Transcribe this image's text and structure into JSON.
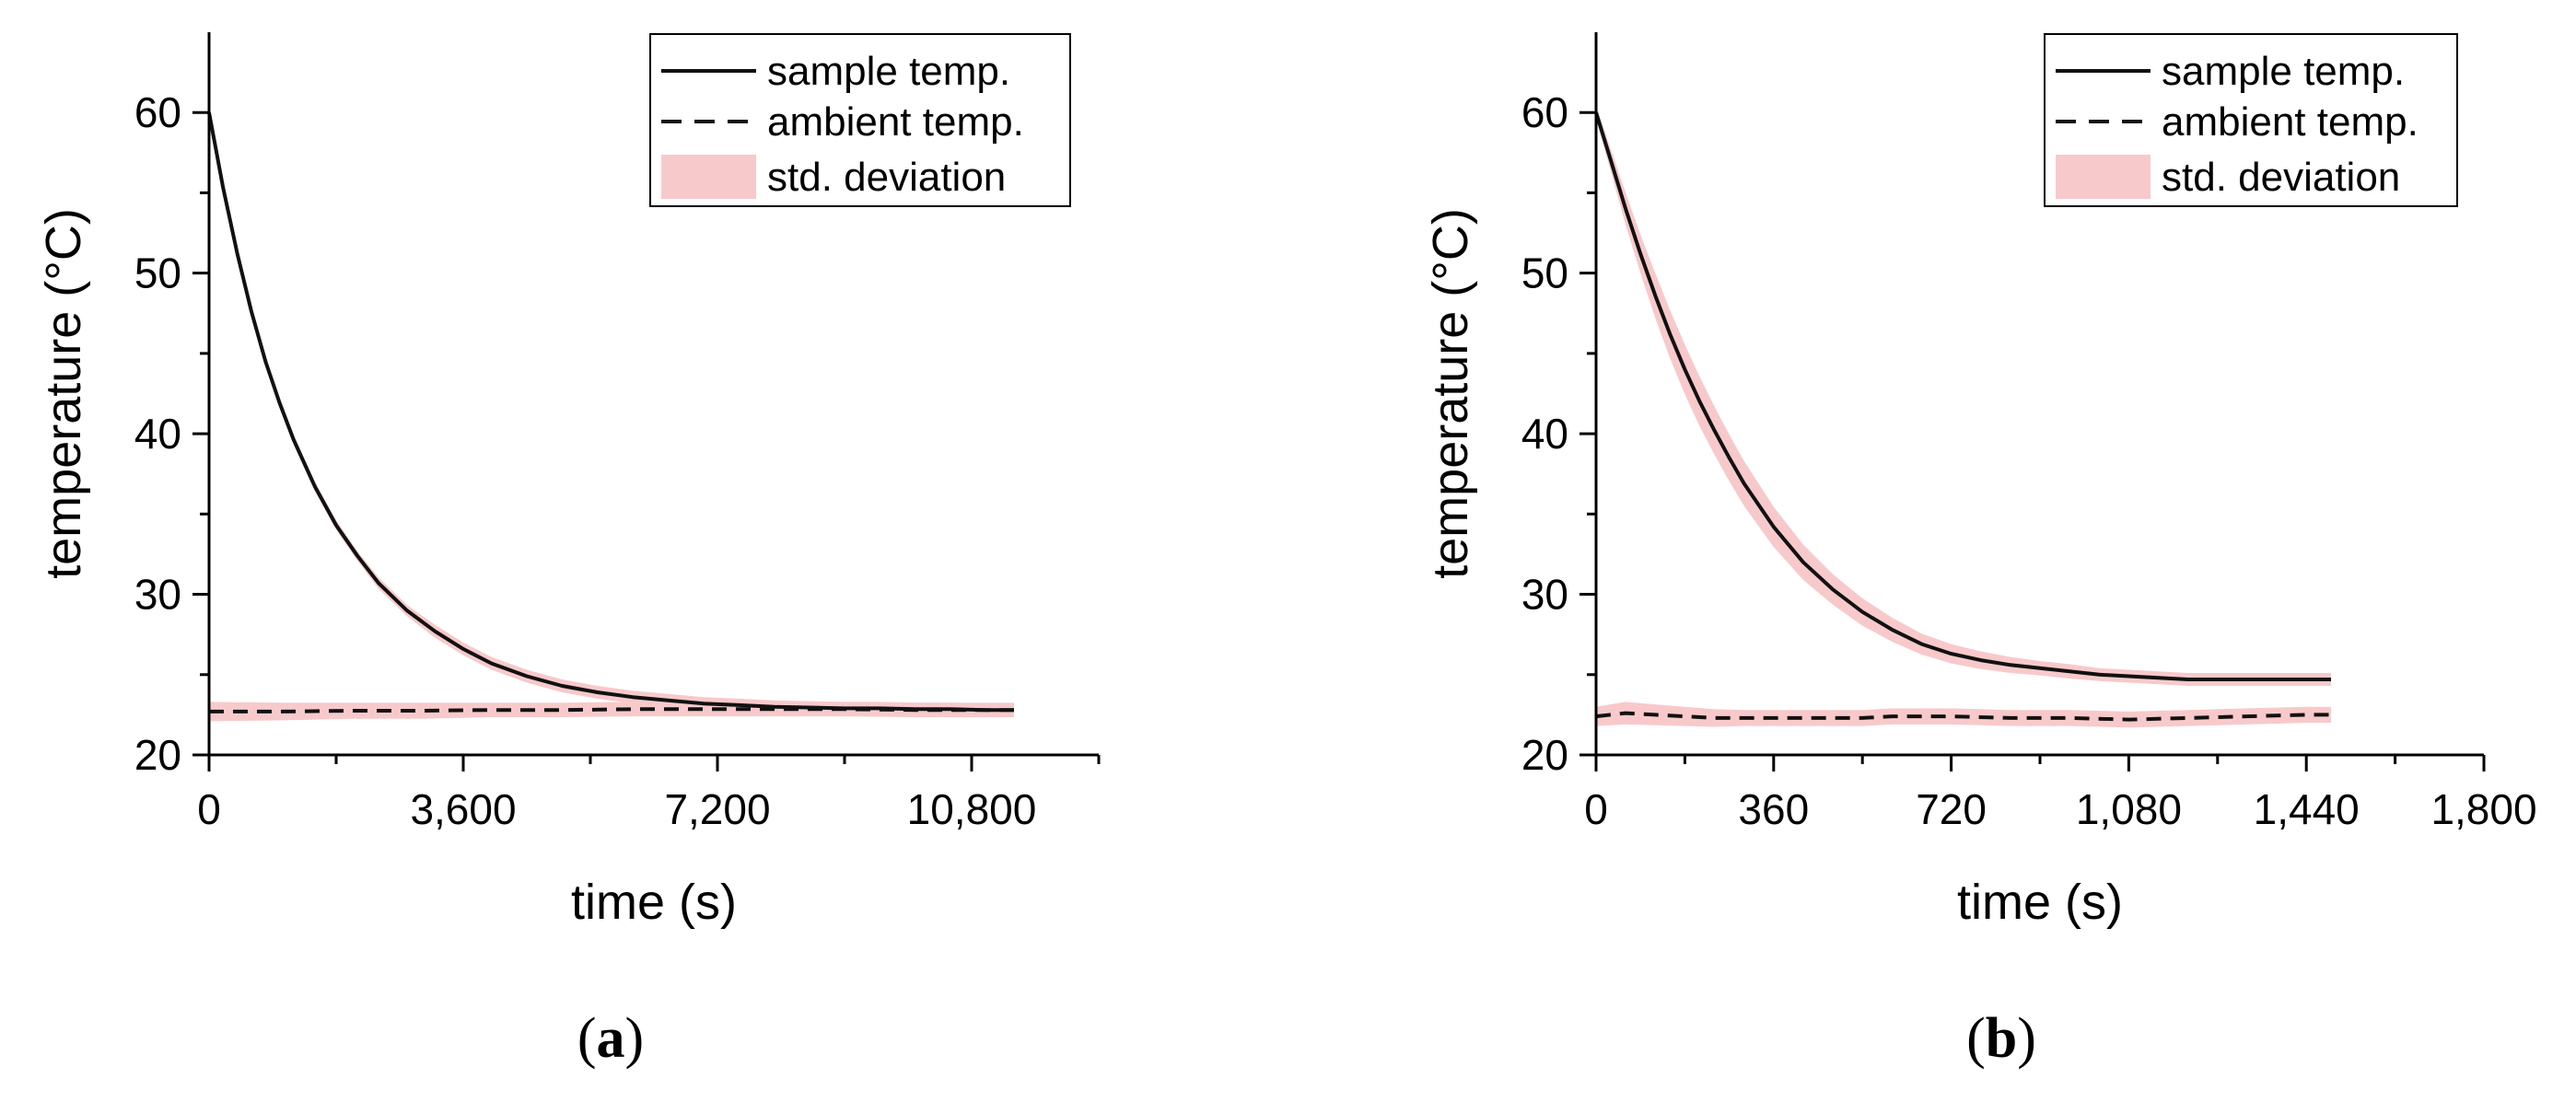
{
  "figure": {
    "panel_labels": [
      {
        "open": "(",
        "letter": "a",
        "close": ")"
      },
      {
        "open": "(",
        "letter": "b",
        "close": ")"
      }
    ]
  },
  "chart_data": [
    {
      "type": "line",
      "panel": "a",
      "xlabel": "time (s)",
      "ylabel": "temperature (°C)",
      "xlim": [
        0,
        12600
      ],
      "ylim": [
        20,
        65
      ],
      "xticks": [
        0,
        3600,
        7200,
        10800
      ],
      "xtick_labels": [
        "0",
        "3,600",
        "7,200",
        "10,800"
      ],
      "xminor": [
        1800,
        5400,
        9000,
        12600
      ],
      "yticks": [
        20,
        30,
        40,
        50,
        60
      ],
      "ytick_labels": [
        "20",
        "30",
        "40",
        "50",
        "60"
      ],
      "yminor": [
        25,
        35,
        45,
        55
      ],
      "legend": {
        "position": "top-right",
        "entries": [
          {
            "label": "sample temp.",
            "style": "solid"
          },
          {
            "label": "ambient temp.",
            "style": "dashed"
          },
          {
            "label": "std. deviation",
            "style": "band"
          }
        ]
      },
      "series": [
        {
          "name": "sample temp.",
          "style": "solid",
          "color": "#111111",
          "x": [
            0,
            200,
            400,
            600,
            800,
            1000,
            1200,
            1500,
            1800,
            2100,
            2400,
            2800,
            3200,
            3600,
            4000,
            4500,
            5000,
            5500,
            6000,
            6500,
            7000,
            7500,
            8000,
            8500,
            9000,
            9500,
            10000,
            10500,
            11000,
            11400
          ],
          "y": [
            60.0,
            55.3,
            51.2,
            47.6,
            44.5,
            41.9,
            39.6,
            36.7,
            34.3,
            32.4,
            30.7,
            29.0,
            27.7,
            26.6,
            25.7,
            24.9,
            24.3,
            23.9,
            23.6,
            23.4,
            23.2,
            23.1,
            23.0,
            22.95,
            22.9,
            22.9,
            22.85,
            22.85,
            22.8,
            22.8
          ],
          "std_dev": [
            0.3,
            0.3,
            0.3,
            0.3,
            0.3,
            0.3,
            0.3,
            0.3,
            0.3,
            0.3,
            0.35,
            0.35,
            0.4,
            0.4,
            0.4,
            0.4,
            0.4,
            0.4,
            0.4,
            0.4,
            0.4,
            0.4,
            0.4,
            0.4,
            0.4,
            0.4,
            0.4,
            0.4,
            0.4,
            0.4
          ]
        },
        {
          "name": "ambient temp.",
          "style": "dashed",
          "color": "#111111",
          "x": [
            0,
            1000,
            2000,
            3000,
            4000,
            5000,
            6000,
            7000,
            8000,
            9000,
            10000,
            11000,
            11400
          ],
          "y": [
            22.7,
            22.7,
            22.75,
            22.75,
            22.8,
            22.8,
            22.85,
            22.85,
            22.85,
            22.85,
            22.8,
            22.8,
            22.8
          ],
          "std_dev": [
            0.6,
            0.55,
            0.5,
            0.5,
            0.45,
            0.45,
            0.45,
            0.45,
            0.45,
            0.45,
            0.45,
            0.45,
            0.45
          ]
        }
      ]
    },
    {
      "type": "line",
      "panel": "b",
      "xlabel": "time (s)",
      "ylabel": "temperature (°C)",
      "xlim": [
        0,
        1800
      ],
      "ylim": [
        20,
        65
      ],
      "xticks": [
        0,
        360,
        720,
        1080,
        1440,
        1800
      ],
      "xtick_labels": [
        "0",
        "360",
        "720",
        "1,080",
        "1,440",
        "1,800"
      ],
      "xminor": [
        180,
        540,
        900,
        1260,
        1620
      ],
      "yticks": [
        20,
        30,
        40,
        50,
        60
      ],
      "ytick_labels": [
        "20",
        "30",
        "40",
        "50",
        "60"
      ],
      "yminor": [
        25,
        35,
        45,
        55
      ],
      "legend": {
        "position": "top-right",
        "entries": [
          {
            "label": "sample temp.",
            "style": "solid"
          },
          {
            "label": "ambient temp.",
            "style": "dashed"
          },
          {
            "label": "std. deviation",
            "style": "band"
          }
        ]
      },
      "series": [
        {
          "name": "sample temp.",
          "style": "solid",
          "color": "#111111",
          "x": [
            0,
            30,
            60,
            90,
            120,
            150,
            180,
            210,
            240,
            270,
            300,
            360,
            420,
            480,
            540,
            600,
            660,
            720,
            780,
            840,
            900,
            960,
            1020,
            1080,
            1140,
            1200,
            1260,
            1320,
            1380,
            1440,
            1490
          ],
          "y": [
            60.0,
            57.0,
            54.0,
            51.2,
            48.6,
            46.2,
            44.0,
            42.0,
            40.2,
            38.5,
            36.9,
            34.2,
            32.0,
            30.3,
            28.9,
            27.8,
            26.9,
            26.3,
            25.9,
            25.6,
            25.4,
            25.2,
            25.0,
            24.9,
            24.8,
            24.7,
            24.7,
            24.7,
            24.7,
            24.7,
            24.7
          ],
          "std_dev": [
            0.4,
            0.7,
            1.0,
            1.2,
            1.4,
            1.5,
            1.55,
            1.55,
            1.5,
            1.45,
            1.4,
            1.25,
            1.1,
            0.95,
            0.85,
            0.75,
            0.65,
            0.6,
            0.55,
            0.5,
            0.45,
            0.45,
            0.4,
            0.4,
            0.4,
            0.4,
            0.4,
            0.4,
            0.4,
            0.4,
            0.4
          ]
        },
        {
          "name": "ambient temp.",
          "style": "dashed",
          "color": "#111111",
          "x": [
            0,
            60,
            120,
            180,
            240,
            300,
            360,
            420,
            480,
            540,
            600,
            720,
            840,
            960,
            1080,
            1200,
            1320,
            1440,
            1490
          ],
          "y": [
            22.4,
            22.6,
            22.5,
            22.4,
            22.3,
            22.3,
            22.3,
            22.3,
            22.3,
            22.3,
            22.4,
            22.4,
            22.3,
            22.3,
            22.2,
            22.3,
            22.4,
            22.5,
            22.5
          ],
          "std_dev": [
            0.6,
            0.7,
            0.65,
            0.6,
            0.55,
            0.5,
            0.5,
            0.5,
            0.5,
            0.5,
            0.5,
            0.5,
            0.5,
            0.5,
            0.5,
            0.5,
            0.5,
            0.5,
            0.5
          ]
        }
      ]
    }
  ],
  "colors": {
    "line": "#111111",
    "band": "#f8c9cb",
    "axis": "#000000"
  }
}
